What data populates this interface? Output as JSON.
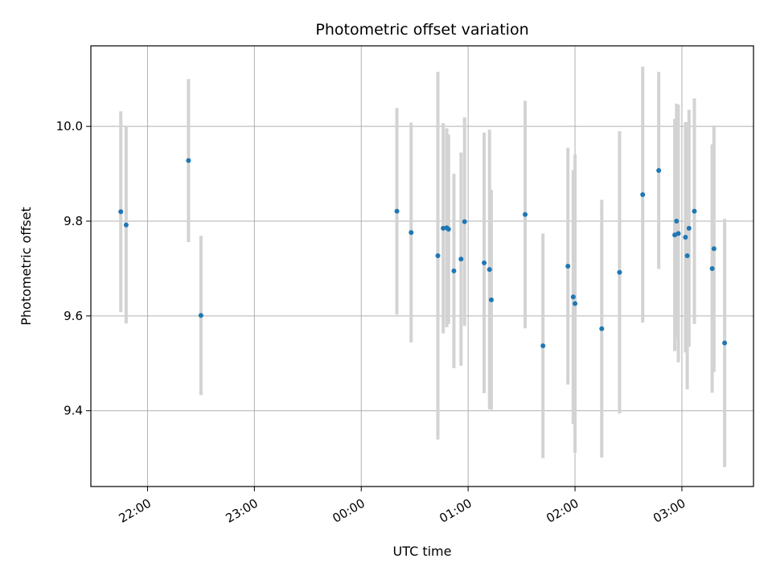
{
  "chart_data": {
    "type": "scatter",
    "title": "Photometric offset variation",
    "xlabel": "UTC time",
    "ylabel": "Photometric offset",
    "x_tick_labels": [
      "22:00",
      "23:00",
      "00:00",
      "01:00",
      "02:00",
      "03:00"
    ],
    "x_tick_hours": [
      -2,
      -1,
      0,
      1,
      2,
      3
    ],
    "xlim_hours": [
      -2.53,
      3.67
    ],
    "y_ticks": [
      9.4,
      9.6,
      9.8,
      10.0
    ],
    "y_tick_labels": [
      "9.4",
      "9.6",
      "9.8",
      "10.0"
    ],
    "ylim": [
      9.24,
      10.17
    ],
    "grid": true,
    "colors": {
      "point": "#1f77b4",
      "errorbar": "#d3d3d3",
      "grid": "#b0b0b0"
    },
    "points": [
      {
        "t": "21:45",
        "y": 9.82,
        "err": 0.212
      },
      {
        "t": "21:48",
        "y": 9.792,
        "err": 0.208
      },
      {
        "t": "22:23",
        "y": 9.928,
        "err": 0.172
      },
      {
        "t": "22:30",
        "y": 9.601,
        "err": 0.168
      },
      {
        "t": "00:20",
        "y": 9.821,
        "err": 0.218
      },
      {
        "t": "00:28",
        "y": 9.776,
        "err": 0.232
      },
      {
        "t": "00:43",
        "y": 9.727,
        "err": 0.388
      },
      {
        "t": "00:46",
        "y": 9.785,
        "err": 0.222
      },
      {
        "t": "00:48",
        "y": 9.786,
        "err": 0.21
      },
      {
        "t": "00:49",
        "y": 9.783,
        "err": 0.2
      },
      {
        "t": "00:52",
        "y": 9.695,
        "err": 0.205
      },
      {
        "t": "00:56",
        "y": 9.72,
        "err": 0.225
      },
      {
        "t": "00:58",
        "y": 9.799,
        "err": 0.22
      },
      {
        "t": "01:09",
        "y": 9.712,
        "err": 0.275
      },
      {
        "t": "01:12",
        "y": 9.698,
        "err": 0.295
      },
      {
        "t": "01:13",
        "y": 9.634,
        "err": 0.232
      },
      {
        "t": "01:32",
        "y": 9.814,
        "err": 0.24
      },
      {
        "t": "01:42",
        "y": 9.537,
        "err": 0.237
      },
      {
        "t": "01:56",
        "y": 9.705,
        "err": 0.25
      },
      {
        "t": "01:59",
        "y": 9.64,
        "err": 0.268
      },
      {
        "t": "02:00",
        "y": 9.626,
        "err": 0.315
      },
      {
        "t": "02:15",
        "y": 9.573,
        "err": 0.272
      },
      {
        "t": "02:25",
        "y": 9.692,
        "err": 0.298
      },
      {
        "t": "02:38",
        "y": 9.856,
        "err": 0.27
      },
      {
        "t": "02:47",
        "y": 9.907,
        "err": 0.208
      },
      {
        "t": "02:56",
        "y": 9.771,
        "err": 0.245
      },
      {
        "t": "02:57",
        "y": 9.8,
        "err": 0.248
      },
      {
        "t": "02:58",
        "y": 9.774,
        "err": 0.272
      },
      {
        "t": "03:02",
        "y": 9.766,
        "err": 0.243
      },
      {
        "t": "03:03",
        "y": 9.727,
        "err": 0.282
      },
      {
        "t": "03:04",
        "y": 9.785,
        "err": 0.25
      },
      {
        "t": "03:07",
        "y": 9.821,
        "err": 0.238
      },
      {
        "t": "03:17",
        "y": 9.7,
        "err": 0.262
      },
      {
        "t": "03:18",
        "y": 9.742,
        "err": 0.26
      },
      {
        "t": "03:24",
        "y": 9.543,
        "err": 0.262
      }
    ]
  }
}
